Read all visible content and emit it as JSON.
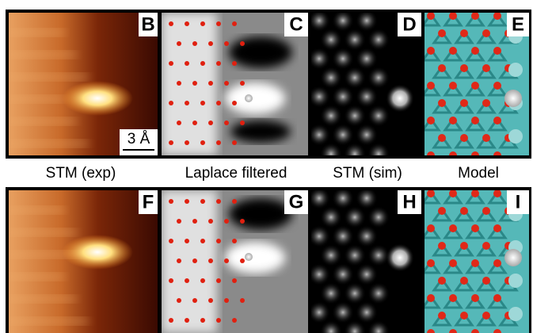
{
  "rows": [
    {
      "panels": [
        "B",
        "C",
        "D",
        "E"
      ]
    },
    {
      "panels": [
        "F",
        "G",
        "H",
        "I"
      ]
    }
  ],
  "column_labels": [
    "STM (exp)",
    "Laplace filtered",
    "STM (sim)",
    "Model"
  ],
  "scale_bar": "3 Å"
}
